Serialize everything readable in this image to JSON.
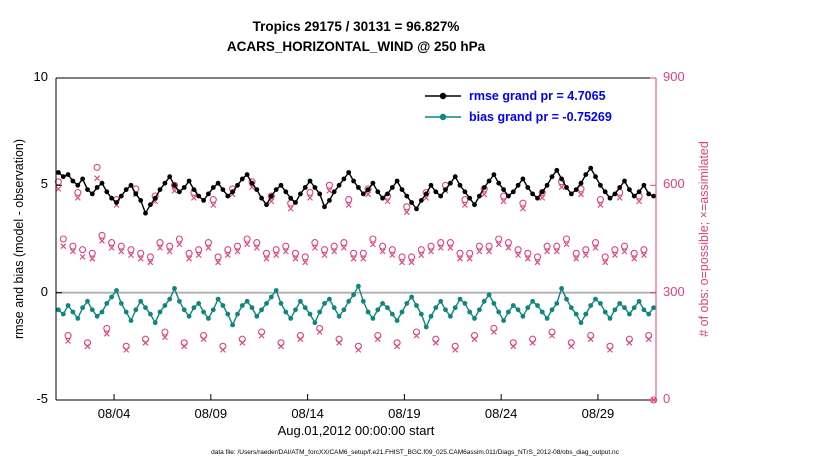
{
  "header": {
    "title_line1": "Tropics 29175 / 30131 = 96.827%",
    "title_line2": "ACARS_HORIZONTAL_WIND @ 250 hPa"
  },
  "legend": {
    "rmse_label": "rmse grand pr = 4.7065",
    "bias_label": "bias grand pr = -0.75269"
  },
  "axes": {
    "left_label": "rmse and bias (model - observation)",
    "left_ticks": [
      -5,
      0,
      5,
      10
    ],
    "right_label": "# of obs: o=possible; ×=assimilated",
    "right_ticks": [
      0,
      300,
      600,
      900
    ],
    "x_tick_labels": [
      "08/04",
      "08/09",
      "08/14",
      "08/19",
      "08/24",
      "08/29"
    ],
    "x_tick_days": [
      3,
      8,
      13,
      18,
      23,
      28
    ],
    "x_label": "Aug.01,2012 00:00:00 start"
  },
  "caption": "data file: /Users/raeder/DAI/ATM_forcXX/CAM6_setup/f.e21.FHIST_BGC.f09_025.CAM6assim.011/Diags_NTrS_2012-08/obs_diag_output.nc",
  "colors": {
    "rmse": "#000000",
    "bias": "#0f867d",
    "obs": "#e0417e",
    "legend_text": "#0000ff",
    "zero_line": "#b0b0b0"
  },
  "chart_data": {
    "type": "line",
    "title": "Tropics 29175 / 30131 = 96.827%",
    "subtitle": "ACARS_HORIZONTAL_WIND @ 250 hPa",
    "xlabel": "Aug.01,2012 00:00:00 start",
    "ylabel_left": "rmse and bias (model - observation)",
    "ylabel_right": "# of obs: o=possible; ×=assimilated",
    "x_range_days": [
      0,
      31
    ],
    "ylim_left": [
      -5,
      10
    ],
    "ylim_right": [
      0,
      900
    ],
    "x_tick_days": [
      3,
      8,
      13,
      18,
      23,
      28
    ],
    "x_tick_labels": [
      "08/04",
      "08/09",
      "08/14",
      "08/19",
      "08/24",
      "08/29"
    ],
    "grid": "zero-line-only",
    "legend_position": "top-right-inside",
    "rmse_grand_pr": 4.7065,
    "bias_grand_pr": -0.75269,
    "x_start_day": 0.125,
    "x_step_days": 0.25,
    "n_points": 124,
    "series": [
      {
        "name": "rmse",
        "axis": "left",
        "marker": "filled-circle",
        "color": "#000000",
        "values": [
          5.6,
          5.4,
          5.5,
          5.2,
          5.0,
          5.3,
          4.8,
          4.6,
          4.9,
          5.1,
          4.7,
          4.4,
          4.2,
          4.5,
          4.8,
          5.0,
          4.6,
          4.3,
          3.7,
          4.1,
          4.4,
          4.8,
          5.1,
          5.4,
          5.0,
          4.7,
          4.9,
          5.2,
          4.8,
          4.5,
          4.3,
          4.6,
          4.9,
          5.1,
          4.8,
          4.5,
          4.7,
          5.0,
          5.3,
          5.5,
          5.1,
          4.8,
          4.4,
          4.1,
          4.5,
          4.8,
          5.0,
          4.7,
          4.4,
          4.2,
          4.6,
          4.9,
          5.2,
          4.9,
          4.6,
          4.0,
          4.3,
          4.7,
          5.0,
          5.3,
          5.6,
          5.2,
          4.9,
          4.6,
          4.8,
          5.1,
          4.7,
          4.4,
          4.6,
          4.9,
          5.2,
          4.8,
          4.5,
          4.2,
          3.9,
          4.3,
          4.6,
          5.0,
          4.7,
          4.5,
          4.8,
          5.1,
          5.4,
          5.0,
          4.7,
          4.4,
          4.1,
          4.5,
          4.9,
          5.2,
          5.5,
          5.1,
          4.8,
          4.5,
          4.7,
          5.0,
          5.3,
          4.9,
          4.6,
          4.4,
          4.7,
          5.0,
          5.4,
          5.7,
          5.3,
          4.9,
          4.6,
          4.8,
          5.1,
          5.5,
          5.8,
          5.4,
          5.0,
          4.7,
          4.4,
          4.6,
          4.9,
          5.2,
          4.8,
          4.5,
          4.7,
          5.0,
          4.6,
          4.5
        ]
      },
      {
        "name": "bias",
        "axis": "left",
        "marker": "filled-circle",
        "color": "#0f867d",
        "values": [
          -0.8,
          -1.0,
          -0.6,
          -0.9,
          -1.2,
          -0.7,
          -0.4,
          -0.8,
          -1.1,
          -0.9,
          -0.5,
          -0.2,
          0.1,
          -0.5,
          -0.9,
          -1.3,
          -0.8,
          -0.4,
          -0.7,
          -1.0,
          -1.4,
          -0.9,
          -0.6,
          -0.3,
          0.2,
          -0.4,
          -0.8,
          -1.1,
          -0.7,
          -0.5,
          -0.9,
          -1.2,
          -0.8,
          -0.3,
          -0.6,
          -1.0,
          -1.5,
          -1.0,
          -0.6,
          -0.4,
          -0.7,
          -1.1,
          -0.8,
          -0.5,
          -0.2,
          0.1,
          -0.5,
          -0.9,
          -1.2,
          -0.8,
          -0.4,
          -0.7,
          -1.0,
          -1.4,
          -0.9,
          -0.5,
          -0.3,
          -0.7,
          -1.1,
          -0.8,
          -0.4,
          -0.1,
          0.3,
          -0.4,
          -0.9,
          -1.2,
          -0.8,
          -0.5,
          -0.7,
          -1.0,
          -1.3,
          -0.9,
          -0.5,
          -0.2,
          -0.6,
          -1.0,
          -1.6,
          -1.1,
          -0.7,
          -0.4,
          -0.8,
          -1.1,
          -0.7,
          -0.3,
          -0.5,
          -0.9,
          -1.2,
          -0.8,
          -0.4,
          -0.1,
          -0.5,
          -0.9,
          -1.3,
          -0.9,
          -0.6,
          -0.8,
          -1.1,
          -0.7,
          -0.4,
          -0.6,
          -0.9,
          -1.2,
          -0.8,
          -0.5,
          0.2,
          -0.3,
          -0.7,
          -1.0,
          -1.4,
          -1.0,
          -0.6,
          -0.3,
          -0.5,
          -0.9,
          -1.2,
          -0.8,
          -0.5,
          -0.7,
          -1.0,
          -0.7,
          -0.4,
          -0.8,
          -1.0,
          -0.7
        ]
      },
      {
        "name": "N_possible",
        "axis": "right",
        "marker": "open-circle",
        "color": "#e0417e",
        "values": [
          610,
          450,
          180,
          430,
          580,
          420,
          160,
          410,
          650,
          460,
          200,
          440,
          560,
          430,
          150,
          420,
          590,
          410,
          170,
          400,
          570,
          440,
          190,
          430,
          600,
          450,
          160,
          410,
          580,
          420,
          180,
          440,
          560,
          400,
          150,
          420,
          590,
          430,
          170,
          450,
          610,
          440,
          190,
          410,
          570,
          420,
          160,
          430,
          550,
          410,
          180,
          400,
          580,
          440,
          200,
          420,
          600,
          430,
          170,
          440,
          560,
          410,
          150,
          410,
          590,
          450,
          180,
          430,
          570,
          420,
          160,
          400,
          540,
          400,
          190,
          420,
          580,
          430,
          170,
          440,
          600,
          440,
          150,
          410,
          560,
          410,
          180,
          430,
          590,
          430,
          200,
          450,
          570,
          440,
          160,
          420,
          550,
          410,
          170,
          400,
          580,
          430,
          190,
          430,
          610,
          450,
          160,
          410,
          590,
          420,
          180,
          440,
          560,
          400,
          150,
          420,
          580,
          430,
          170,
          410,
          570,
          420,
          180,
          0
        ]
      },
      {
        "name": "N_assimilated",
        "axis": "right",
        "marker": "x-cross",
        "color": "#e0417e",
        "values": [
          590,
          430,
          165,
          415,
          565,
          400,
          150,
          395,
          620,
          445,
          185,
          425,
          545,
          415,
          140,
          405,
          575,
          395,
          160,
          385,
          555,
          425,
          175,
          415,
          585,
          435,
          150,
          395,
          565,
          405,
          170,
          425,
          545,
          385,
          140,
          405,
          575,
          415,
          160,
          435,
          595,
          425,
          180,
          395,
          555,
          405,
          150,
          415,
          535,
          395,
          170,
          385,
          565,
          425,
          190,
          405,
          585,
          415,
          160,
          425,
          545,
          395,
          140,
          395,
          575,
          435,
          170,
          415,
          555,
          405,
          150,
          385,
          525,
          385,
          180,
          405,
          565,
          415,
          160,
          425,
          585,
          425,
          140,
          395,
          545,
          395,
          170,
          415,
          575,
          415,
          190,
          435,
          555,
          425,
          150,
          405,
          535,
          395,
          160,
          385,
          565,
          415,
          180,
          415,
          595,
          435,
          150,
          395,
          575,
          405,
          170,
          425,
          545,
          385,
          140,
          405,
          565,
          415,
          160,
          395,
          555,
          405,
          170,
          0
        ]
      }
    ]
  }
}
